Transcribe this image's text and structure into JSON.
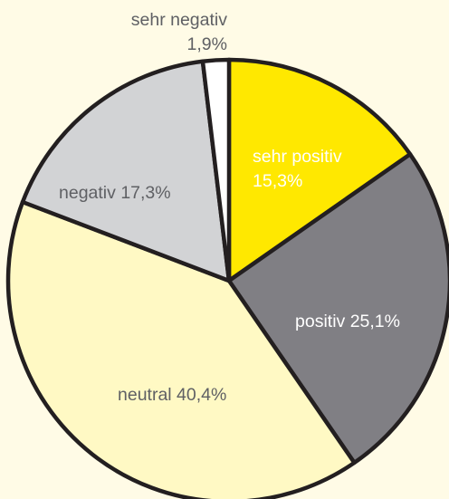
{
  "chart_data": {
    "type": "pie",
    "slices": [
      {
        "name": "sehr positiv",
        "value": 15.3,
        "value_label": "15,3%",
        "color": "#ffe800",
        "label_color": "#ffffff"
      },
      {
        "name": "positiv",
        "value": 25.1,
        "value_label": "25,1%",
        "color": "#807f84",
        "label_color": "#ffffff"
      },
      {
        "name": "neutral",
        "value": 40.4,
        "value_label": "40,4%",
        "color": "#fff9c4",
        "label_color": "#5f6064"
      },
      {
        "name": "negativ",
        "value": 17.3,
        "value_label": "17,3%",
        "color": "#d2d3d5",
        "label_color": "#5f6064"
      },
      {
        "name": "sehr negativ",
        "value": 1.9,
        "value_label": "1,9%",
        "color": "#ffffff",
        "label_color": "#5f6064"
      }
    ],
    "start_position": "12 o'clock",
    "direction": "clockwise",
    "outline_color": "#231f20",
    "background_color": "#fffbe6"
  }
}
